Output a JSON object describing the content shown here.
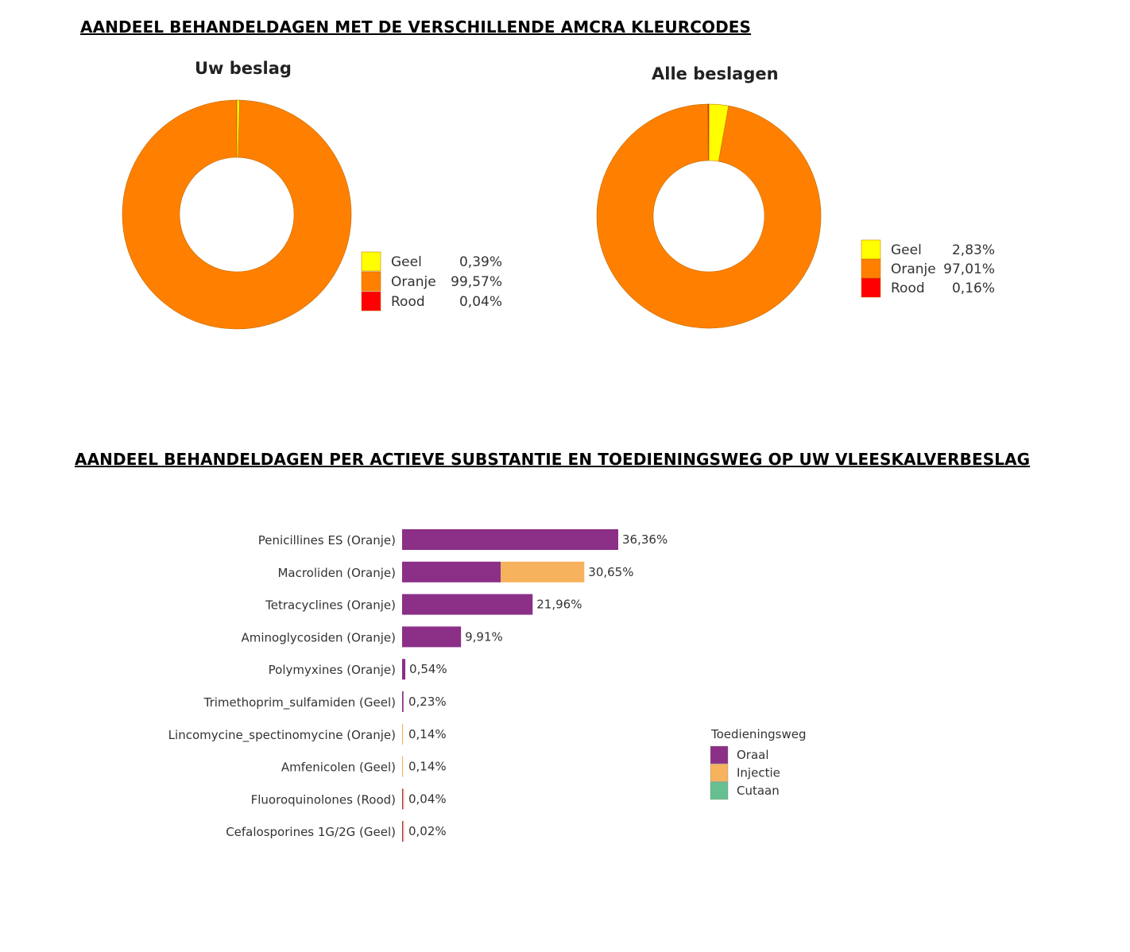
{
  "headings": {
    "section1": "AANDEEL BEHANDELDAGEN MET DE VERSCHILLENDE AMCRA KLEURCODES",
    "section2": "AANDEEL BEHANDELDAGEN PER ACTIEVE SUBSTANTIE EN TOEDIENINGSWEG OP UW VLEESKALVERBESLAG"
  },
  "chart_data": [
    {
      "type": "pie",
      "variant": "donut",
      "title": "Uw beslag",
      "legend_placement": "bottom-right",
      "slices": [
        {
          "label": "Geel",
          "value": 0.39,
          "value_label": "0,39%",
          "color": "#FFFF00"
        },
        {
          "label": "Oranje",
          "value": 99.57,
          "value_label": "99,57%",
          "color": "#FF8000"
        },
        {
          "label": "Rood",
          "value": 0.04,
          "value_label": "0,04%",
          "color": "#FF0000"
        }
      ]
    },
    {
      "type": "pie",
      "variant": "donut",
      "title": "Alle beslagen",
      "legend_placement": "right",
      "slices": [
        {
          "label": "Geel",
          "value": 2.83,
          "value_label": "2,83%",
          "color": "#FFFF00"
        },
        {
          "label": "Oranje",
          "value": 97.01,
          "value_label": "97,01%",
          "color": "#FF8000"
        },
        {
          "label": "Rood",
          "value": 0.16,
          "value_label": "0,16%",
          "color": "#FF0000"
        }
      ]
    },
    {
      "type": "bar",
      "orientation": "horizontal",
      "stacked": true,
      "legend_title": "Toedieningsweg",
      "legend_placement": "right",
      "xlim": [
        0,
        36.36
      ],
      "categories": [
        "Penicillines ES (Oranje)",
        "Macroliden (Oranje)",
        "Tetracyclines (Oranje)",
        "Aminoglycosiden (Oranje)",
        "Polymyxines (Oranje)",
        "Trimethoprim_sulfamiden (Geel)",
        "Lincomycine_spectinomycine (Oranje)",
        "Amfenicolen (Geel)",
        "Fluoroquinolones (Rood)",
        "Cefalosporines 1G/2G (Geel)"
      ],
      "totals": [
        36.36,
        30.65,
        21.96,
        9.91,
        0.54,
        0.23,
        0.14,
        0.14,
        0.04,
        0.02
      ],
      "total_labels": [
        "36,36%",
        "30,65%",
        "21,96%",
        "9,91%",
        "0,54%",
        "0,23%",
        "0,14%",
        "0,14%",
        "0,04%",
        "0,02%"
      ],
      "series": [
        {
          "name": "Oraal",
          "color": "#8B2F87",
          "values": [
            36.36,
            16.6,
            21.96,
            9.91,
            0.54,
            0.23,
            0,
            0,
            0.02,
            0.01
          ]
        },
        {
          "name": "Injectie",
          "color": "#F6B25C",
          "values": [
            0,
            14.05,
            0,
            0,
            0,
            0,
            0.14,
            0.14,
            0.02,
            0.01
          ]
        },
        {
          "name": "Cutaan",
          "color": "#66BF90",
          "values": [
            0,
            0,
            0,
            0,
            0,
            0,
            0,
            0,
            0,
            0
          ]
        }
      ]
    }
  ]
}
